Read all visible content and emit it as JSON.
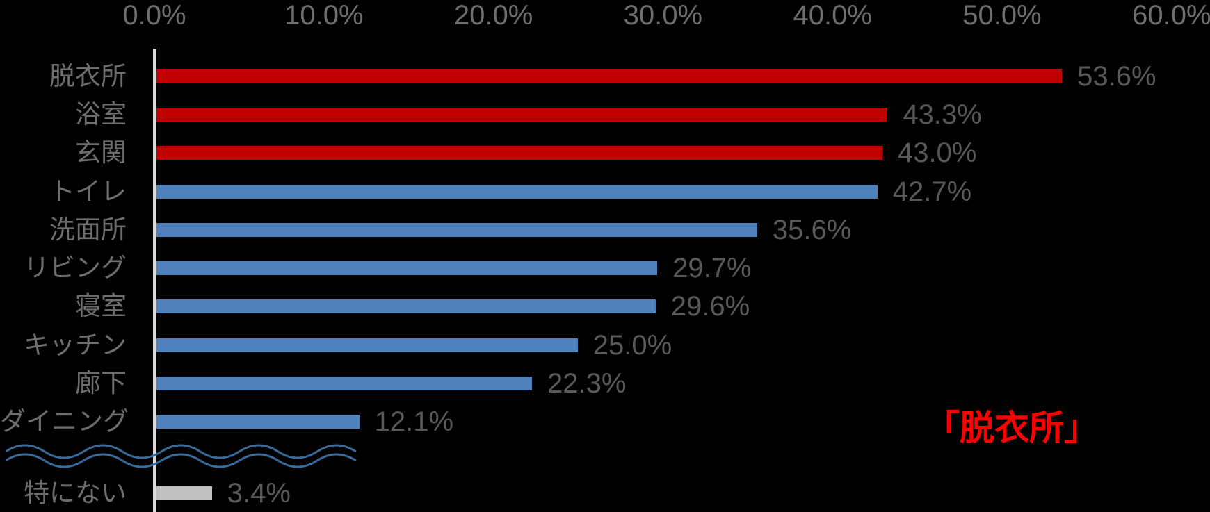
{
  "chart_data": {
    "type": "bar",
    "orientation": "horizontal",
    "title": "",
    "xlabel": "",
    "ylabel": "",
    "x_tick_labels": [
      "0.0%",
      "10.0%",
      "20.0%",
      "30.0%",
      "40.0%",
      "50.0%",
      "60.0%"
    ],
    "xlim": [
      0,
      60
    ],
    "grid": "off",
    "legend": "none",
    "categories": [
      "脱衣所",
      "浴室",
      "玄関",
      "トイレ",
      "洗面所",
      "リビング",
      "寝室",
      "キッチン",
      "廊下",
      "ダイニング",
      "特にない"
    ],
    "values": [
      53.6,
      43.3,
      43.0,
      42.7,
      35.6,
      29.7,
      29.6,
      25.0,
      22.3,
      12.1,
      3.4
    ],
    "value_labels": [
      "53.6%",
      "43.3%",
      "43.0%",
      "42.7%",
      "35.6%",
      "29.7%",
      "29.6%",
      "25.0%",
      "22.3%",
      "12.1%",
      "3.4%"
    ],
    "bar_color_keys": [
      "red",
      "red",
      "red",
      "blue",
      "blue",
      "blue",
      "blue",
      "blue",
      "blue",
      "blue",
      "gray"
    ],
    "axis_break": {
      "position": "between ダイニング and 特にない",
      "style": "double-wavy-line"
    },
    "annotation": {
      "text": "「脱衣所」",
      "color": "#FF0000"
    },
    "colors": {
      "red": "#C00000",
      "blue": "#4F81BD",
      "gray": "#BFBFBF",
      "axis_line": "#D9D9D9",
      "tick_label": "#6E6E6E",
      "category_label": "#6E6E6E",
      "value_label": "#595959",
      "wave": "#3A6B9C",
      "background": "#000000"
    }
  }
}
